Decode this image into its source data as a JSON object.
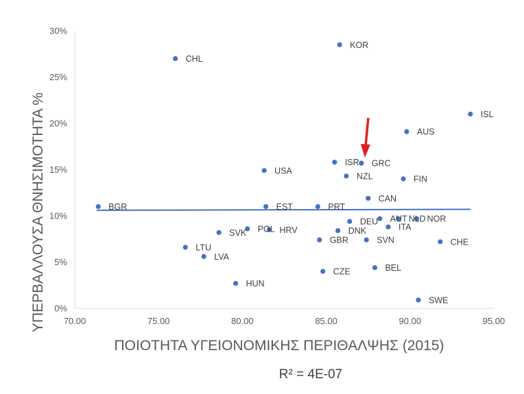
{
  "chart_data": {
    "type": "scatter",
    "xlabel": "ΠΟΙΟΤΗΤΑ ΥΓΕΙΟΝΟΜΙΚΗΣ ΠΕΡΙΘΑΛΨΗΣ (2015)",
    "ylabel": "ΥΠΕΡΒΑΛΛΟΥΣΑ ΘΝΗΣΙΜΟΤΗΤΑ %",
    "xlim": [
      70,
      95
    ],
    "ylim": [
      0,
      30
    ],
    "x_ticks": [
      "70.00",
      "75.00",
      "80.00",
      "85.00",
      "90.00",
      "95.00"
    ],
    "y_ticks": [
      "0%",
      "5%",
      "10%",
      "15%",
      "20%",
      "25%",
      "30%"
    ],
    "grid": false,
    "marker_color": "#4472C4",
    "trendline_color": "#4472C4",
    "arrow_color": "#E02020",
    "trendline": {
      "type": "linear",
      "x": [
        71.3,
        93.6
      ],
      "y": [
        10.6,
        10.7
      ],
      "r2_label": "R² = 4E-07"
    },
    "highlight": "GRC",
    "points": [
      {
        "label": "KOR",
        "x": 85.8,
        "y": 28.5
      },
      {
        "label": "CHL",
        "x": 76.0,
        "y": 27.0
      },
      {
        "label": "ISL",
        "x": 93.6,
        "y": 21.0
      },
      {
        "label": "AUS",
        "x": 89.8,
        "y": 19.1
      },
      {
        "label": "ISR",
        "x": 85.5,
        "y": 15.8
      },
      {
        "label": "GRC",
        "x": 87.1,
        "y": 15.7
      },
      {
        "label": "USA",
        "x": 81.3,
        "y": 14.9
      },
      {
        "label": "NZL",
        "x": 86.2,
        "y": 14.3
      },
      {
        "label": "FIN",
        "x": 89.6,
        "y": 14.0
      },
      {
        "label": "CAN",
        "x": 87.5,
        "y": 11.9
      },
      {
        "label": "BGR",
        "x": 71.4,
        "y": 11.0
      },
      {
        "label": "EST",
        "x": 81.4,
        "y": 11.0
      },
      {
        "label": "PRT",
        "x": 84.5,
        "y": 11.0
      },
      {
        "label": "AUT",
        "x": 88.2,
        "y": 9.7
      },
      {
        "label": "NLD",
        "x": 89.3,
        "y": 9.7
      },
      {
        "label": "NOR",
        "x": 90.4,
        "y": 9.7
      },
      {
        "label": "DEU",
        "x": 86.4,
        "y": 9.4
      },
      {
        "label": "POL",
        "x": 80.3,
        "y": 8.6
      },
      {
        "label": "HRV",
        "x": 81.6,
        "y": 8.5
      },
      {
        "label": "ITA",
        "x": 88.7,
        "y": 8.8
      },
      {
        "label": "DNK",
        "x": 85.7,
        "y": 8.4
      },
      {
        "label": "SVK",
        "x": 78.6,
        "y": 8.2
      },
      {
        "label": "GBR",
        "x": 84.6,
        "y": 7.4
      },
      {
        "label": "SVN",
        "x": 87.4,
        "y": 7.4
      },
      {
        "label": "CHE",
        "x": 91.8,
        "y": 7.2
      },
      {
        "label": "LTU",
        "x": 76.6,
        "y": 6.6
      },
      {
        "label": "LVA",
        "x": 77.7,
        "y": 5.6
      },
      {
        "label": "BEL",
        "x": 87.9,
        "y": 4.4
      },
      {
        "label": "CZE",
        "x": 84.8,
        "y": 4.0
      },
      {
        "label": "HUN",
        "x": 79.6,
        "y": 2.7
      },
      {
        "label": "SWE",
        "x": 90.5,
        "y": 0.9
      }
    ]
  }
}
